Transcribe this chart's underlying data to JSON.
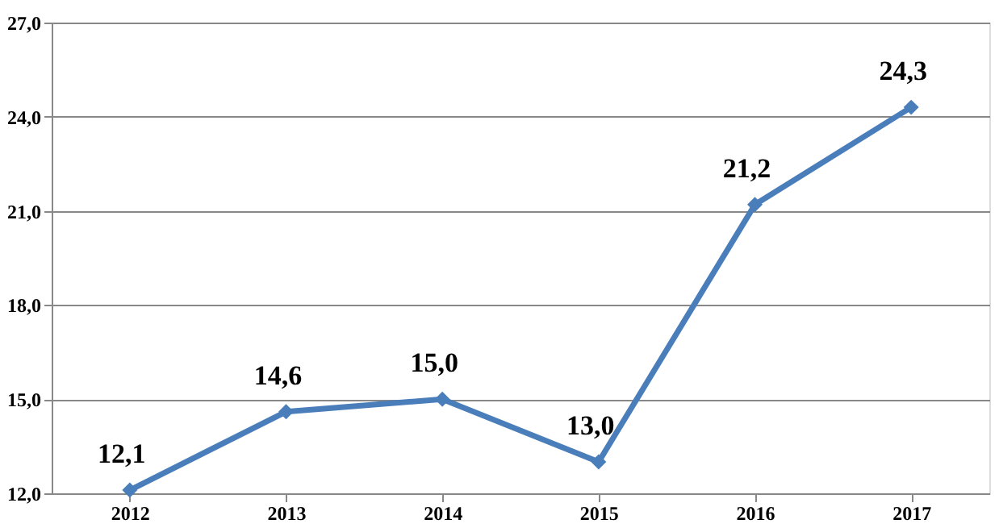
{
  "chart_data": {
    "type": "line",
    "categories": [
      "2012",
      "2013",
      "2014",
      "2015",
      "2016",
      "2017"
    ],
    "series": [
      {
        "color": "#4a7ebb",
        "values": [
          12.1,
          14.6,
          15.0,
          13.0,
          21.2,
          24.3
        ],
        "value_labels": [
          "12,1",
          "14,6",
          "15,0",
          "13,0",
          "21,2",
          "24,3"
        ]
      }
    ],
    "ylim": [
      12,
      27
    ],
    "yticks": [
      {
        "value": 12,
        "label": "12,0"
      },
      {
        "value": 15,
        "label": "15,0"
      },
      {
        "value": 18,
        "label": "18,0"
      },
      {
        "value": 21,
        "label": "21,0"
      },
      {
        "value": 24,
        "label": "24,0"
      },
      {
        "value": 27,
        "label": "27,0"
      }
    ],
    "grid": "y",
    "marker": "diamond",
    "line_style": "solid"
  }
}
